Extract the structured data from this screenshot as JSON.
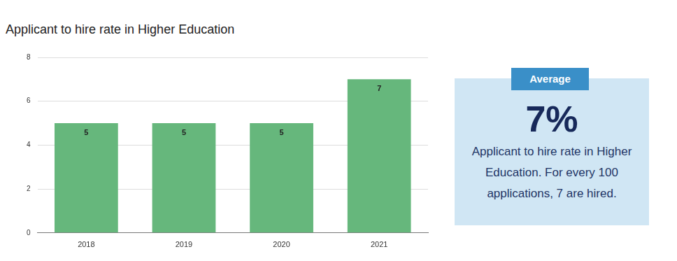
{
  "chart_data": {
    "type": "bar",
    "title": "Applicant to hire rate in Higher Education",
    "categories": [
      "2018",
      "2019",
      "2020",
      "2021"
    ],
    "values": [
      5,
      5,
      5,
      7
    ],
    "color": "#66b77c",
    "ylim": [
      0,
      8
    ],
    "yticks": [
      0,
      2,
      4,
      6,
      8
    ],
    "grid": true,
    "data_labels": true
  },
  "callout": {
    "heading": "Average",
    "value_text": "7%",
    "text": "Applicant to hire rate in Higher Education. For every 100 applications, 7 are hired."
  }
}
